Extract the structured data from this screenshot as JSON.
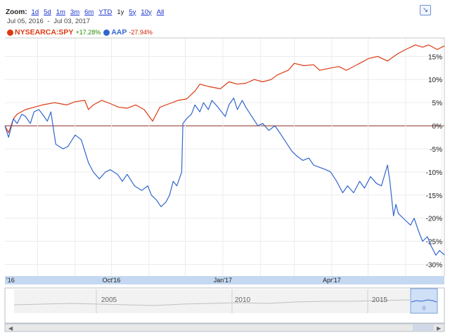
{
  "zoom": {
    "label": "Zoom:",
    "options": [
      "1d",
      "5d",
      "1m",
      "3m",
      "6m",
      "YTD",
      "1y",
      "5y",
      "10y",
      "All"
    ],
    "active": "1y"
  },
  "date_range": {
    "start": "Jul 05, 2016",
    "separator": "-",
    "end": "Jul 03, 2017"
  },
  "legend": [
    {
      "name": "NYSEARCA:SPY",
      "change": "+17.28%",
      "color": "#dc3912",
      "change_color": "#2a8a00"
    },
    {
      "name": "AAP",
      "change": "-27.94%",
      "color": "#3366cc",
      "change_color": "#cc2200"
    }
  ],
  "navigator": {
    "labels": [
      "2005",
      "2010",
      "2015"
    ]
  },
  "chart_data": {
    "type": "line",
    "x_labels": [
      "'16",
      "Oct'16",
      "Jan'17",
      "Apr'17"
    ],
    "y_ticks": [
      "15%",
      "10%",
      "5%",
      "0%",
      "-5%",
      "-10%",
      "-15%",
      "-20%",
      "-25%",
      "-30%"
    ],
    "ylim": [
      -32.5,
      19
    ],
    "grid": true,
    "legend_position": "top-left",
    "series": [
      {
        "name": "NYSEARCA:SPY",
        "color": "#dc3912",
        "points": [
          [
            "2016-07-05",
            0.0
          ],
          [
            "2016-07-08",
            -1.5
          ],
          [
            "2016-07-12",
            1.5
          ],
          [
            "2016-07-15",
            2.5
          ],
          [
            "2016-07-22",
            3.5
          ],
          [
            "2016-07-29",
            4.0
          ],
          [
            "2016-08-05",
            4.5
          ],
          [
            "2016-08-15",
            5.0
          ],
          [
            "2016-08-25",
            4.5
          ],
          [
            "2016-09-01",
            5.2
          ],
          [
            "2016-09-09",
            5.5
          ],
          [
            "2016-09-12",
            3.5
          ],
          [
            "2016-09-16",
            4.5
          ],
          [
            "2016-09-23",
            5.5
          ],
          [
            "2016-09-30",
            4.8
          ],
          [
            "2016-10-07",
            4.0
          ],
          [
            "2016-10-14",
            3.8
          ],
          [
            "2016-10-21",
            4.5
          ],
          [
            "2016-10-28",
            3.5
          ],
          [
            "2016-11-04",
            1.0
          ],
          [
            "2016-11-07",
            2.5
          ],
          [
            "2016-11-10",
            4.0
          ],
          [
            "2016-11-18",
            4.8
          ],
          [
            "2016-11-25",
            5.5
          ],
          [
            "2016-12-02",
            5.8
          ],
          [
            "2016-12-09",
            7.5
          ],
          [
            "2016-12-13",
            9.0
          ],
          [
            "2016-12-20",
            8.5
          ],
          [
            "2016-12-30",
            8.0
          ],
          [
            "2017-01-06",
            9.5
          ],
          [
            "2017-01-13",
            9.0
          ],
          [
            "2017-01-20",
            9.2
          ],
          [
            "2017-01-27",
            10.0
          ],
          [
            "2017-02-03",
            9.5
          ],
          [
            "2017-02-10",
            10.0
          ],
          [
            "2017-02-15",
            11.0
          ],
          [
            "2017-02-24",
            12.0
          ],
          [
            "2017-03-01",
            13.5
          ],
          [
            "2017-03-09",
            13.0
          ],
          [
            "2017-03-17",
            13.2
          ],
          [
            "2017-03-22",
            12.0
          ],
          [
            "2017-03-31",
            12.5
          ],
          [
            "2017-04-07",
            12.8
          ],
          [
            "2017-04-13",
            12.0
          ],
          [
            "2017-04-24",
            13.5
          ],
          [
            "2017-05-01",
            14.5
          ],
          [
            "2017-05-09",
            15.0
          ],
          [
            "2017-05-17",
            14.0
          ],
          [
            "2017-05-25",
            15.5
          ],
          [
            "2017-06-01",
            16.5
          ],
          [
            "2017-06-09",
            17.5
          ],
          [
            "2017-06-15",
            17.0
          ],
          [
            "2017-06-20",
            17.5
          ],
          [
            "2017-06-27",
            16.5
          ],
          [
            "2017-07-03",
            17.28
          ]
        ]
      },
      {
        "name": "AAP",
        "color": "#3366cc",
        "points": [
          [
            "2016-07-05",
            0.0
          ],
          [
            "2016-07-08",
            -2.5
          ],
          [
            "2016-07-12",
            1.5
          ],
          [
            "2016-07-15",
            0.5
          ],
          [
            "2016-07-19",
            2.5
          ],
          [
            "2016-07-22",
            2.0
          ],
          [
            "2016-07-26",
            0.5
          ],
          [
            "2016-07-29",
            3.0
          ],
          [
            "2016-08-02",
            3.5
          ],
          [
            "2016-08-05",
            2.5
          ],
          [
            "2016-08-09",
            1.0
          ],
          [
            "2016-08-12",
            3.0
          ],
          [
            "2016-08-16",
            -4.0
          ],
          [
            "2016-08-22",
            -5.0
          ],
          [
            "2016-08-26",
            -4.5
          ],
          [
            "2016-09-01",
            -2.0
          ],
          [
            "2016-09-06",
            -3.0
          ],
          [
            "2016-09-12",
            -8.0
          ],
          [
            "2016-09-16",
            -10.0
          ],
          [
            "2016-09-21",
            -11.5
          ],
          [
            "2016-09-26",
            -10.0
          ],
          [
            "2016-09-30",
            -9.5
          ],
          [
            "2016-10-06",
            -10.5
          ],
          [
            "2016-10-10",
            -12.0
          ],
          [
            "2016-10-14",
            -10.5
          ],
          [
            "2016-10-20",
            -13.0
          ],
          [
            "2016-10-26",
            -14.0
          ],
          [
            "2016-10-31",
            -13.0
          ],
          [
            "2016-11-03",
            -15.0
          ],
          [
            "2016-11-07",
            -16.0
          ],
          [
            "2016-11-11",
            -17.5
          ],
          [
            "2016-11-15",
            -16.5
          ],
          [
            "2016-11-18",
            -15.0
          ],
          [
            "2016-11-21",
            -12.0
          ],
          [
            "2016-11-24",
            -13.0
          ],
          [
            "2016-11-28",
            -10.0
          ],
          [
            "2016-11-29",
            0.5
          ],
          [
            "2016-12-02",
            1.5
          ],
          [
            "2016-12-06",
            2.5
          ],
          [
            "2016-12-09",
            4.5
          ],
          [
            "2016-12-13",
            3.0
          ],
          [
            "2016-12-16",
            5.0
          ],
          [
            "2016-12-20",
            3.5
          ],
          [
            "2016-12-23",
            5.5
          ],
          [
            "2016-12-28",
            4.0
          ],
          [
            "2017-01-03",
            2.0
          ],
          [
            "2017-01-06",
            4.5
          ],
          [
            "2017-01-10",
            6.0
          ],
          [
            "2017-01-13",
            3.5
          ],
          [
            "2017-01-17",
            5.5
          ],
          [
            "2017-01-20",
            4.0
          ],
          [
            "2017-01-25",
            2.0
          ],
          [
            "2017-01-30",
            0.0
          ],
          [
            "2017-02-03",
            0.5
          ],
          [
            "2017-02-08",
            -1.0
          ],
          [
            "2017-02-13",
            0.0
          ],
          [
            "2017-02-17",
            -1.5
          ],
          [
            "2017-02-22",
            -3.5
          ],
          [
            "2017-02-27",
            -5.5
          ],
          [
            "2017-03-03",
            -6.5
          ],
          [
            "2017-03-08",
            -7.5
          ],
          [
            "2017-03-13",
            -7.0
          ],
          [
            "2017-03-17",
            -8.5
          ],
          [
            "2017-03-22",
            -9.0
          ],
          [
            "2017-03-27",
            -9.5
          ],
          [
            "2017-03-31",
            -10.0
          ],
          [
            "2017-04-05",
            -12.0
          ],
          [
            "2017-04-10",
            -14.5
          ],
          [
            "2017-04-14",
            -13.0
          ],
          [
            "2017-04-19",
            -14.5
          ],
          [
            "2017-04-24",
            -12.0
          ],
          [
            "2017-04-28",
            -13.5
          ],
          [
            "2017-05-03",
            -11.0
          ],
          [
            "2017-05-08",
            -12.5
          ],
          [
            "2017-05-12",
            -13.0
          ],
          [
            "2017-05-17",
            -8.5
          ],
          [
            "2017-05-19",
            -12.0
          ],
          [
            "2017-05-22",
            -19.5
          ],
          [
            "2017-05-24",
            -17.0
          ],
          [
            "2017-05-26",
            -19.0
          ],
          [
            "2017-06-01",
            -20.5
          ],
          [
            "2017-06-05",
            -21.5
          ],
          [
            "2017-06-08",
            -20.0
          ],
          [
            "2017-06-12",
            -23.0
          ],
          [
            "2017-06-15",
            -25.0
          ],
          [
            "2017-06-19",
            -24.0
          ],
          [
            "2017-06-22",
            -26.0
          ],
          [
            "2017-06-26",
            -28.0
          ],
          [
            "2017-06-29",
            -27.0
          ],
          [
            "2017-07-03",
            -27.94
          ]
        ]
      }
    ]
  }
}
